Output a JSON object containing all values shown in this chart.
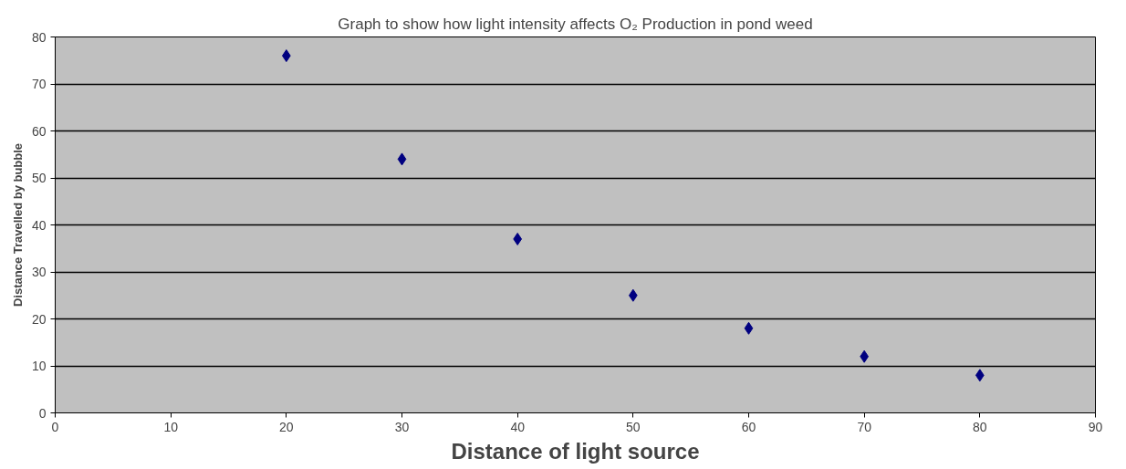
{
  "chart_data": {
    "type": "scatter",
    "title": "Graph to show how light intensity affects O₂ Production in pond weed",
    "xlabel": "Distance of light source",
    "ylabel": "Distance Travelled by bubble",
    "x": [
      20,
      30,
      40,
      50,
      60,
      70,
      80
    ],
    "values": [
      76,
      54,
      37,
      25,
      18,
      12,
      8
    ],
    "color": "#000080",
    "xlim": [
      0,
      90
    ],
    "xticks": [
      0,
      10,
      20,
      30,
      40,
      50,
      60,
      70,
      80,
      90
    ],
    "ylim": [
      0,
      80
    ],
    "yticks": [
      0,
      10,
      20,
      30,
      40,
      50,
      60,
      70,
      80
    ],
    "grid": "y",
    "marker": "diamond",
    "legend": false
  }
}
